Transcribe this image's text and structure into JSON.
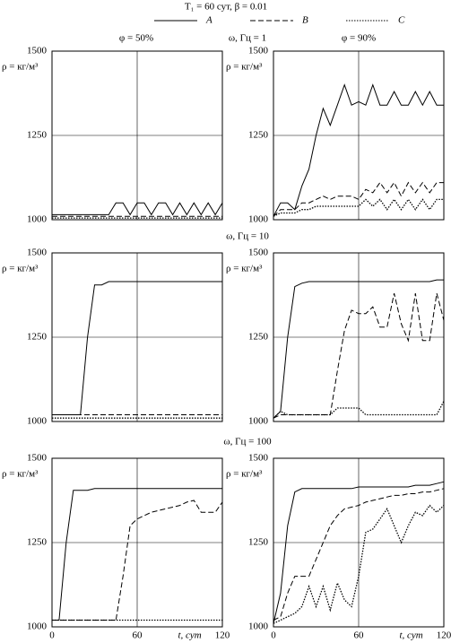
{
  "figure": {
    "title": "T₁ = 60 сут, β = 0.01",
    "columns": [
      "φ = 50%",
      "φ = 90%"
    ],
    "rows": [
      "ω, Гц = 1",
      "ω, Гц = 10",
      "ω, Гц = 100"
    ]
  },
  "chart_data": [
    {
      "type": "line",
      "ylabel": "ρ = кг/м³",
      "xlim": [
        0,
        120
      ],
      "xticks": [
        0,
        60,
        120
      ],
      "ylim": [
        1000,
        1500
      ],
      "yticks": [
        1000,
        1250,
        1500
      ],
      "grid": true,
      "x": [
        0,
        5,
        10,
        15,
        20,
        25,
        30,
        35,
        40,
        45,
        50,
        55,
        60,
        65,
        70,
        75,
        80,
        85,
        90,
        95,
        100,
        105,
        110,
        115,
        120
      ],
      "series": [
        {
          "name": "A",
          "color": "#000",
          "style": "solid",
          "values": [
            1015,
            1015,
            1015,
            1015,
            1015,
            1015,
            1015,
            1015,
            1015,
            1050,
            1050,
            1015,
            1050,
            1050,
            1015,
            1050,
            1050,
            1015,
            1050,
            1015,
            1050,
            1015,
            1050,
            1015,
            1050
          ]
        },
        {
          "name": "B",
          "color": "#000",
          "style": "dashed",
          "values": [
            1010,
            1010,
            1010,
            1010,
            1010,
            1010,
            1010,
            1010,
            1010,
            1010,
            1010,
            1010,
            1010,
            1010,
            1010,
            1010,
            1010,
            1010,
            1010,
            1010,
            1010,
            1010,
            1010,
            1010,
            1010
          ]
        },
        {
          "name": "C",
          "color": "#000",
          "style": "dotted",
          "values": [
            1005,
            1005,
            1005,
            1005,
            1005,
            1005,
            1005,
            1005,
            1005,
            1005,
            1005,
            1005,
            1005,
            1005,
            1005,
            1005,
            1005,
            1005,
            1005,
            1005,
            1005,
            1005,
            1005,
            1005,
            1005
          ]
        }
      ]
    },
    {
      "type": "line",
      "ylabel": "ρ = кг/м³",
      "xlim": [
        0,
        120
      ],
      "xticks": [
        0,
        60,
        120
      ],
      "ylim": [
        1000,
        1500
      ],
      "yticks": [
        1000,
        1250,
        1500
      ],
      "grid": true,
      "x": [
        0,
        5,
        10,
        15,
        20,
        25,
        30,
        35,
        40,
        45,
        50,
        55,
        60,
        65,
        70,
        75,
        80,
        85,
        90,
        95,
        100,
        105,
        110,
        115,
        120
      ],
      "series": [
        {
          "name": "A",
          "color": "#000",
          "style": "solid",
          "values": [
            1010,
            1050,
            1050,
            1030,
            1100,
            1150,
            1250,
            1330,
            1280,
            1340,
            1400,
            1340,
            1350,
            1340,
            1400,
            1340,
            1340,
            1380,
            1340,
            1340,
            1380,
            1340,
            1380,
            1340,
            1340
          ]
        },
        {
          "name": "B",
          "color": "#000",
          "style": "dashed",
          "values": [
            1010,
            1030,
            1030,
            1030,
            1050,
            1050,
            1060,
            1070,
            1060,
            1070,
            1070,
            1070,
            1060,
            1090,
            1080,
            1110,
            1080,
            1110,
            1070,
            1110,
            1080,
            1110,
            1080,
            1110,
            1110
          ]
        },
        {
          "name": "C",
          "color": "#000",
          "style": "dotted",
          "values": [
            1010,
            1020,
            1020,
            1020,
            1030,
            1030,
            1040,
            1040,
            1040,
            1040,
            1040,
            1040,
            1040,
            1060,
            1040,
            1060,
            1030,
            1060,
            1030,
            1060,
            1030,
            1060,
            1030,
            1060,
            1060
          ]
        }
      ]
    },
    {
      "type": "line",
      "ylabel": "ρ = кг/м³",
      "xlim": [
        0,
        120
      ],
      "xticks": [
        0,
        60,
        120
      ],
      "ylim": [
        1000,
        1500
      ],
      "yticks": [
        1000,
        1250,
        1500
      ],
      "grid": true,
      "x": [
        0,
        5,
        10,
        15,
        20,
        25,
        30,
        35,
        40,
        45,
        50,
        55,
        60,
        65,
        70,
        75,
        80,
        85,
        90,
        95,
        100,
        105,
        110,
        115,
        120
      ],
      "series": [
        {
          "name": "A",
          "color": "#000",
          "style": "solid",
          "values": [
            1020,
            1020,
            1020,
            1020,
            1020,
            1250,
            1405,
            1405,
            1415,
            1415,
            1415,
            1415,
            1415,
            1415,
            1415,
            1415,
            1415,
            1415,
            1415,
            1415,
            1415,
            1415,
            1415,
            1415,
            1415
          ]
        },
        {
          "name": "B",
          "color": "#000",
          "style": "dashed",
          "values": [
            1020,
            1020,
            1020,
            1020,
            1020,
            1020,
            1020,
            1020,
            1020,
            1020,
            1020,
            1020,
            1020,
            1020,
            1020,
            1020,
            1020,
            1020,
            1020,
            1020,
            1020,
            1020,
            1020,
            1020,
            1020
          ]
        },
        {
          "name": "C",
          "color": "#000",
          "style": "dotted",
          "values": [
            1010,
            1010,
            1010,
            1010,
            1010,
            1010,
            1010,
            1010,
            1010,
            1010,
            1010,
            1010,
            1010,
            1010,
            1010,
            1010,
            1010,
            1010,
            1010,
            1010,
            1010,
            1010,
            1010,
            1010,
            1010
          ]
        }
      ]
    },
    {
      "type": "line",
      "ylabel": "ρ = кг/м³",
      "xlim": [
        0,
        120
      ],
      "xticks": [
        0,
        60,
        120
      ],
      "ylim": [
        1000,
        1500
      ],
      "yticks": [
        1000,
        1250,
        1500
      ],
      "grid": true,
      "x": [
        0,
        5,
        10,
        15,
        20,
        25,
        30,
        35,
        40,
        45,
        50,
        55,
        60,
        65,
        70,
        75,
        80,
        85,
        90,
        95,
        100,
        105,
        110,
        115,
        120
      ],
      "series": [
        {
          "name": "A",
          "color": "#000",
          "style": "solid",
          "values": [
            1010,
            1030,
            1250,
            1400,
            1410,
            1415,
            1415,
            1415,
            1415,
            1415,
            1415,
            1415,
            1415,
            1415,
            1415,
            1415,
            1415,
            1415,
            1415,
            1415,
            1415,
            1415,
            1415,
            1420,
            1420
          ]
        },
        {
          "name": "B",
          "color": "#000",
          "style": "dashed",
          "values": [
            1010,
            1020,
            1020,
            1020,
            1020,
            1020,
            1020,
            1020,
            1020,
            1150,
            1270,
            1330,
            1320,
            1320,
            1340,
            1280,
            1280,
            1380,
            1290,
            1240,
            1380,
            1240,
            1240,
            1380,
            1300
          ]
        },
        {
          "name": "C",
          "color": "#000",
          "style": "dotted",
          "values": [
            1010,
            1030,
            1020,
            1020,
            1020,
            1020,
            1020,
            1020,
            1020,
            1040,
            1040,
            1040,
            1040,
            1020,
            1020,
            1020,
            1020,
            1020,
            1020,
            1020,
            1020,
            1020,
            1020,
            1020,
            1060
          ]
        }
      ]
    },
    {
      "type": "line",
      "ylabel": "ρ = кг/м³",
      "xlabel": "t, сут",
      "xlim": [
        0,
        120
      ],
      "xticks": [
        0,
        60,
        120
      ],
      "ylim": [
        1000,
        1500
      ],
      "yticks": [
        1000,
        1250,
        1500
      ],
      "grid": true,
      "show_xtick_labels": true,
      "x": [
        0,
        5,
        10,
        15,
        20,
        25,
        30,
        35,
        40,
        45,
        50,
        55,
        60,
        65,
        70,
        75,
        80,
        85,
        90,
        95,
        100,
        105,
        110,
        115,
        120
      ],
      "series": [
        {
          "name": "A",
          "color": "#000",
          "style": "solid",
          "values": [
            1020,
            1020,
            1250,
            1405,
            1405,
            1405,
            1410,
            1410,
            1410,
            1410,
            1410,
            1410,
            1410,
            1410,
            1410,
            1410,
            1410,
            1410,
            1410,
            1410,
            1410,
            1410,
            1410,
            1410,
            1410
          ]
        },
        {
          "name": "B",
          "color": "#000",
          "style": "dashed",
          "values": [
            1020,
            1020,
            1020,
            1020,
            1020,
            1020,
            1020,
            1020,
            1020,
            1020,
            1150,
            1300,
            1320,
            1330,
            1340,
            1345,
            1350,
            1355,
            1360,
            1370,
            1375,
            1340,
            1340,
            1340,
            1370
          ]
        },
        {
          "name": "C",
          "color": "#000",
          "style": "dotted",
          "values": [
            1020,
            1020,
            1020,
            1020,
            1020,
            1020,
            1020,
            1020,
            1020,
            1020,
            1020,
            1020,
            1020,
            1020,
            1020,
            1020,
            1020,
            1020,
            1020,
            1020,
            1020,
            1020,
            1020,
            1020,
            1020
          ]
        }
      ]
    },
    {
      "type": "line",
      "ylabel": "ρ = кг/м³",
      "xlabel": "t, сут",
      "xlim": [
        0,
        120
      ],
      "xticks": [
        0,
        60,
        120
      ],
      "ylim": [
        1000,
        1500
      ],
      "yticks": [
        1000,
        1250,
        1500
      ],
      "grid": true,
      "show_xtick_labels": true,
      "x": [
        0,
        5,
        10,
        15,
        20,
        25,
        30,
        35,
        40,
        45,
        50,
        55,
        60,
        65,
        70,
        75,
        80,
        85,
        90,
        95,
        100,
        105,
        110,
        115,
        120
      ],
      "series": [
        {
          "name": "A",
          "color": "#000",
          "style": "solid",
          "values": [
            1010,
            1100,
            1300,
            1400,
            1410,
            1410,
            1410,
            1410,
            1410,
            1410,
            1410,
            1410,
            1415,
            1415,
            1415,
            1415,
            1415,
            1415,
            1415,
            1415,
            1420,
            1420,
            1420,
            1425,
            1430
          ]
        },
        {
          "name": "B",
          "color": "#000",
          "style": "dashed",
          "values": [
            1020,
            1030,
            1100,
            1150,
            1150,
            1150,
            1200,
            1250,
            1300,
            1330,
            1350,
            1355,
            1360,
            1370,
            1375,
            1380,
            1385,
            1390,
            1390,
            1395,
            1395,
            1400,
            1400,
            1405,
            1410
          ]
        },
        {
          "name": "C",
          "color": "#000",
          "style": "dotted",
          "values": [
            1010,
            1020,
            1030,
            1040,
            1060,
            1120,
            1060,
            1120,
            1050,
            1130,
            1080,
            1060,
            1150,
            1280,
            1290,
            1320,
            1350,
            1300,
            1250,
            1300,
            1340,
            1330,
            1360,
            1340,
            1360
          ]
        }
      ]
    }
  ]
}
